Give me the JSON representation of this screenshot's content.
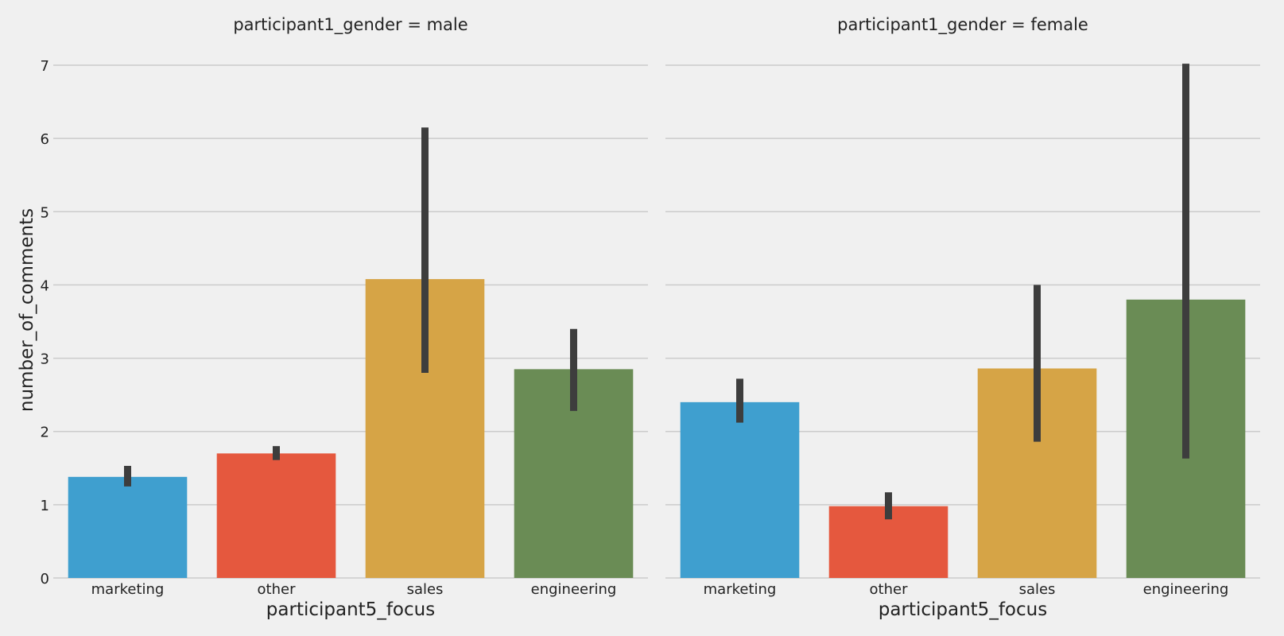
{
  "chart_data": {
    "type": "bar",
    "ylabel": "number_of_comments",
    "ylim": [
      0,
      7
    ],
    "yticks": [
      0,
      1,
      2,
      3,
      4,
      5,
      6,
      7
    ],
    "grid": true,
    "colors": [
      "#3f9fcf",
      "#e5583e",
      "#d6a446",
      "#6a8c55"
    ],
    "errorbar_color": "#3d3d3d",
    "panels": [
      {
        "title": "participant1_gender = male",
        "xlabel": "participant5_focus",
        "categories": [
          "marketing",
          "other",
          "sales",
          "engineering"
        ],
        "values": [
          1.38,
          1.7,
          4.08,
          2.85
        ],
        "ci_low": [
          1.25,
          1.61,
          2.8,
          2.28
        ],
        "ci_high": [
          1.53,
          1.8,
          6.15,
          3.4
        ]
      },
      {
        "title": "participant1_gender = female",
        "xlabel": "participant5_focus",
        "categories": [
          "marketing",
          "other",
          "sales",
          "engineering"
        ],
        "values": [
          2.4,
          0.98,
          2.86,
          3.8
        ],
        "ci_low": [
          2.12,
          0.8,
          1.86,
          1.63
        ],
        "ci_high": [
          2.72,
          1.17,
          4.0,
          7.02
        ]
      }
    ]
  }
}
